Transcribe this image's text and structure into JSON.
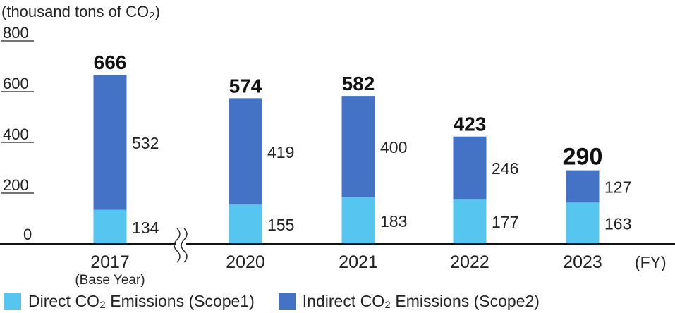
{
  "chart_data": {
    "type": "bar",
    "stacked": true,
    "unit_label": "(thousand tons of CO₂)",
    "x_unit": "(FY)",
    "ylim": [
      0,
      800
    ],
    "yticks": [
      0,
      200,
      400,
      600,
      800
    ],
    "categories": [
      "2017",
      "2020",
      "2021",
      "2022",
      "2023"
    ],
    "category_sublabels": [
      "(Base Year)",
      "",
      "",
      "",
      ""
    ],
    "axis_break_after": "2017",
    "series": [
      {
        "name": "Direct CO₂ Emissions (Scope1)",
        "color": "#56c5f0",
        "values": [
          134,
          155,
          183,
          177,
          163
        ]
      },
      {
        "name": "Indirect CO₂ Emissions (Scope2)",
        "color": "#4472c4",
        "values": [
          532,
          419,
          400,
          246,
          127
        ]
      }
    ],
    "totals": [
      666,
      574,
      582,
      423,
      290
    ],
    "emphasized_total": "2023",
    "legend_position": "bottom-left",
    "grid": false
  }
}
